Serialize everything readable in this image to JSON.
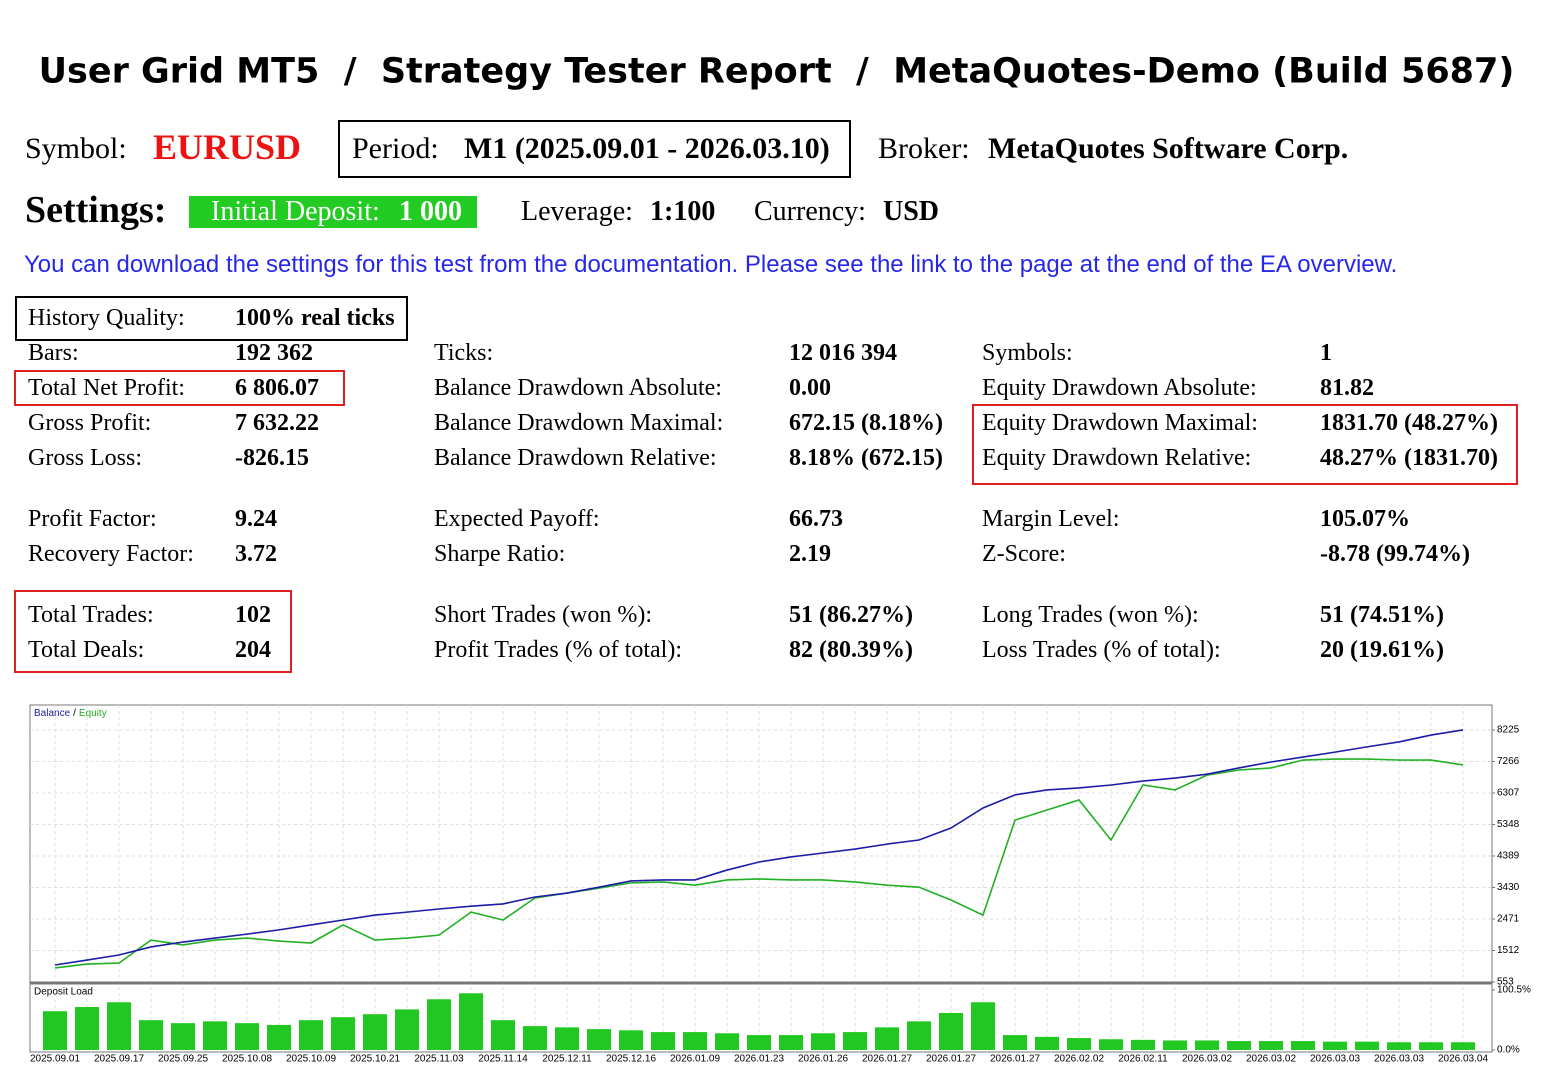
{
  "header": {
    "title": "User Grid MT5  /  Strategy Tester Report  /  MetaQuotes-Demo (Build 5687)"
  },
  "info": {
    "symbol_label": "Symbol:",
    "symbol": "EURUSD",
    "period_label": "Period:",
    "period": "M1 (2025.09.01 - 2026.03.10)",
    "broker_label": "Broker:",
    "broker": "MetaQuotes Software Corp."
  },
  "settings": {
    "label": "Settings:",
    "deposit_label": "Initial Deposit:",
    "deposit": "1 000",
    "leverage_label": "Leverage:",
    "leverage": "1:100",
    "currency_label": "Currency:",
    "currency": "USD"
  },
  "note": "You can download the settings for this test from the documentation. Please see the link to the page at the end of the EA overview.",
  "stats": [
    [
      {
        "label": "History Quality:",
        "value": "100% real ticks"
      }
    ],
    [
      {
        "label": "Bars:",
        "value": "192 362"
      },
      {
        "label": "Ticks:",
        "value": "12 016 394"
      },
      {
        "label": "Symbols:",
        "value": "1"
      }
    ],
    [
      {
        "label": "Total Net Profit:",
        "value": "6 806.07"
      },
      {
        "label": "Balance Drawdown Absolute:",
        "value": "0.00"
      },
      {
        "label": "Equity Drawdown Absolute:",
        "value": "81.82"
      }
    ],
    [
      {
        "label": "Gross Profit:",
        "value": "7 632.22"
      },
      {
        "label": "Balance Drawdown Maximal:",
        "value": "672.15 (8.18%)"
      },
      {
        "label": "Equity Drawdown Maximal:",
        "value": "1831.70 (48.27%)"
      }
    ],
    [
      {
        "label": "Gross Loss:",
        "value": "-826.15"
      },
      {
        "label": "Balance Drawdown Relative:",
        "value": "8.18% (672.15)"
      },
      {
        "label": "Equity Drawdown Relative:",
        "value": "48.27% (1831.70)"
      }
    ],
    [
      {
        "label": "Profit Factor:",
        "value": "9.24"
      },
      {
        "label": "Expected Payoff:",
        "value": "66.73"
      },
      {
        "label": "Margin Level:",
        "value": "105.07%"
      }
    ],
    [
      {
        "label": "Recovery Factor:",
        "value": "3.72"
      },
      {
        "label": "Sharpe Ratio:",
        "value": "2.19"
      },
      {
        "label": "Z-Score:",
        "value": "-8.78 (99.74%)"
      }
    ],
    [
      {
        "label": "Total Trades:",
        "value": "102"
      },
      {
        "label": "Short Trades (won %):",
        "value": "51 (86.27%)"
      },
      {
        "label": "Long Trades (won %):",
        "value": "51 (74.51%)"
      }
    ],
    [
      {
        "label": "Total Deals:",
        "value": "204"
      },
      {
        "label": "Profit Trades (% of total):",
        "value": "82 (80.39%)"
      },
      {
        "label": "Loss Trades (% of total):",
        "value": "20 (19.61%)"
      }
    ]
  ],
  "chart_data": [
    {
      "type": "line",
      "legend_separator": "/",
      "categories": [
        "2025.09.01",
        null,
        "2025.09.17",
        null,
        "2025.09.25",
        null,
        "2025.10.08",
        null,
        "2025.10.09",
        null,
        "2025.10.21",
        null,
        "2025.11.03",
        null,
        "2025.11.14",
        null,
        "2025.12.11",
        null,
        "2025.12.16",
        null,
        "2026.01.09",
        null,
        "2026.01.23",
        null,
        "2026.01.26",
        null,
        "2026.01.27",
        null,
        "2026.01.27",
        null,
        "2026.01.27",
        null,
        "2026.02.02",
        null,
        "2026.02.11",
        null,
        "2026.03.02",
        null,
        "2026.03.02",
        null,
        "2026.03.03",
        null,
        "2026.03.03",
        null,
        "2026.03.04"
      ],
      "series": [
        {
          "name": "Balance",
          "color": "#1c1ca8",
          "values": [
            1070,
            1220,
            1375,
            1620,
            1770,
            1890,
            2010,
            2140,
            2290,
            2440,
            2590,
            2680,
            2775,
            2860,
            2930,
            3140,
            3260,
            3440,
            3630,
            3660,
            3660,
            3960,
            4206,
            4360,
            4480,
            4600,
            4750,
            4875,
            5240,
            5850,
            6250,
            6400,
            6460,
            6550,
            6670,
            6760,
            6880,
            7070,
            7250,
            7400,
            7550,
            7710,
            7860,
            8070,
            8225
          ]
        },
        {
          "name": "Equity",
          "color": "#22b022",
          "values": [
            980,
            1100,
            1130,
            1830,
            1680,
            1830,
            1890,
            1800,
            1740,
            2290,
            1830,
            1890,
            1980,
            2680,
            2440,
            3110,
            3260,
            3410,
            3570,
            3600,
            3500,
            3660,
            3690,
            3660,
            3660,
            3600,
            3500,
            3440,
            3050,
            2590,
            5480,
            5790,
            6094,
            4875,
            6550,
            6400,
            6850,
            7006,
            7070,
            7310,
            7340,
            7340,
            7310,
            7310,
            7160
          ]
        }
      ],
      "ylim": [
        553,
        8985
      ],
      "yticks": [
        553,
        1512,
        2471,
        3430,
        4389,
        5348,
        6307,
        7266,
        8225
      ],
      "grid": true
    },
    {
      "type": "bar",
      "title": "Deposit Load",
      "color": "#22c822",
      "values": [
        65,
        72,
        80,
        50,
        45,
        48,
        45,
        42,
        50,
        55,
        60,
        68,
        85,
        95,
        50,
        40,
        38,
        35,
        33,
        30,
        30,
        28,
        25,
        25,
        28,
        30,
        38,
        48,
        62,
        80,
        25,
        22,
        20,
        18,
        17,
        16,
        16,
        15,
        15,
        15,
        14,
        14,
        13,
        13,
        13
      ],
      "ylim": [
        0,
        100.5
      ],
      "yticks": [
        {
          "value": 0,
          "label": "0.0%"
        },
        {
          "value": 100.5,
          "label": "100.5%"
        }
      ]
    }
  ]
}
